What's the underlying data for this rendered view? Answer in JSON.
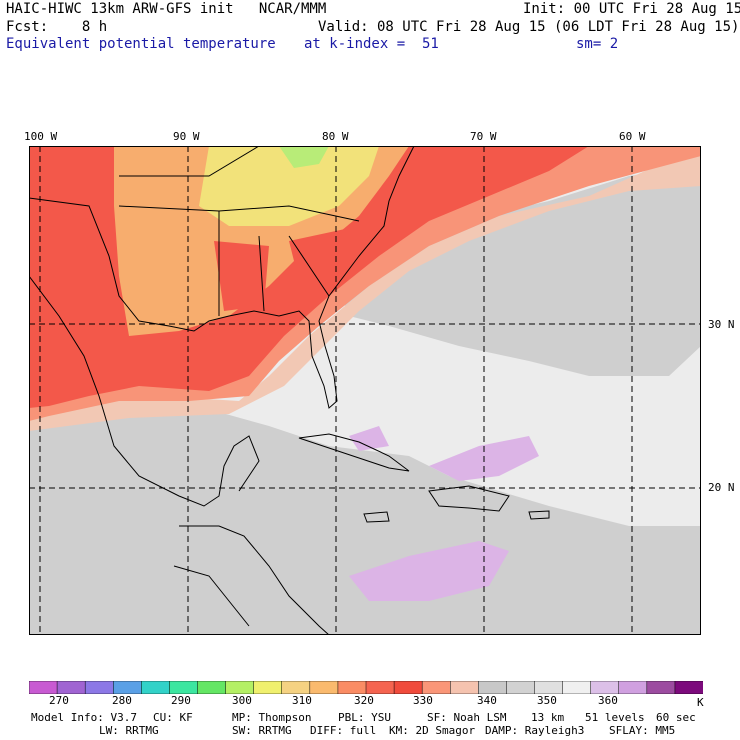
{
  "header": {
    "line1_left": "HAIC-HIWC 13km ARW-GFS init   NCAR/MMM",
    "line1_right": "Init: 00 UTC Fri 28 Aug 15",
    "line2_left": "Fcst:    8 h",
    "line2_right": "Valid: 08 UTC Fri 28 Aug 15 (06 LDT Fri 28 Aug 15)",
    "field": "Equivalent potential temperature",
    "level": "at k-index =  51",
    "smooth": "sm= 2"
  },
  "axes": {
    "lon_labels": [
      "100 W",
      "90 W",
      "80 W",
      "70 W",
      "60 W"
    ],
    "lat_labels": [
      "30 N",
      "20 N"
    ]
  },
  "colorbar": {
    "colors": [
      "#c85ad2",
      "#a064d2",
      "#8c78e6",
      "#5aa0e6",
      "#32d2c8",
      "#3ce6a0",
      "#64e664",
      "#b4f064",
      "#f0f06e",
      "#f5d282",
      "#faba6e",
      "#fa8c64",
      "#f56450",
      "#f04b3c",
      "#fa9678",
      "#f5c3af",
      "#c8c8c8",
      "#d2d2d2",
      "#e0e0e0",
      "#f0f0f0",
      "#dcc0e8",
      "#d0a0e0",
      "#9c4ca0",
      "#7c0a7c"
    ],
    "labels": [
      "270",
      "280",
      "290",
      "300",
      "310",
      "320",
      "330",
      "340",
      "350",
      "360"
    ],
    "unit": "K"
  },
  "model_info": {
    "line1": [
      "Model Info: V3.7",
      "CU: KF",
      "MP: Thompson",
      "PBL: YSU",
      "SF: Noah LSM",
      "13 km",
      "51 levels",
      "60 sec"
    ],
    "line2": [
      "LW: RRTMG",
      "SW: RRTMG",
      "DIFF: full",
      "KM: 2D Smagor",
      "DAMP: Rayleigh3",
      "SFLAY: MM5"
    ]
  }
}
